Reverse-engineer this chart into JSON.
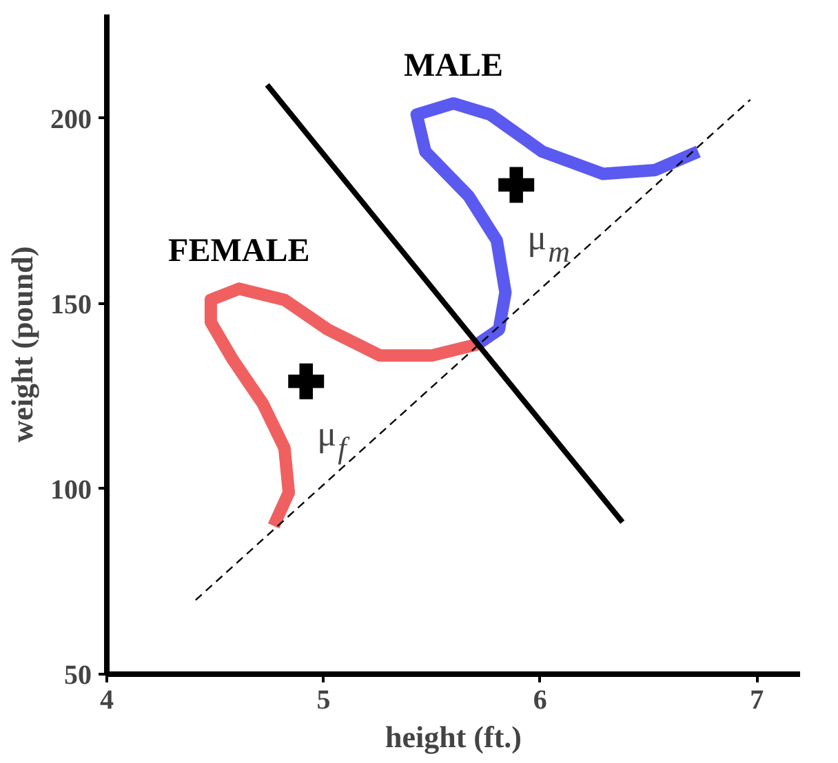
{
  "chart_data": {
    "type": "line",
    "xlabel": "height (ft.)",
    "ylabel": "weight (pound)",
    "xlim": [
      4,
      7.2
    ],
    "ylim": [
      50,
      228
    ],
    "xticks": [
      4,
      5,
      6,
      7
    ],
    "yticks": [
      50,
      100,
      150,
      200
    ],
    "grid": false,
    "series": [
      {
        "name": "FEMALE",
        "color": "#f06060",
        "x": [
          4.77,
          4.84,
          4.82,
          4.72,
          4.58,
          4.48,
          4.48,
          4.61,
          4.82,
          5.02,
          5.26,
          5.5,
          5.71
        ],
        "values": [
          90,
          99,
          111,
          123,
          135,
          145,
          151,
          154,
          151,
          143,
          136,
          136,
          139
        ]
      },
      {
        "name": "MALE",
        "color": "#5a5af0",
        "x": [
          5.71,
          5.81,
          5.84,
          5.8,
          5.67,
          5.47,
          5.43,
          5.6,
          5.77,
          6.01,
          6.29,
          6.53,
          6.73
        ],
        "values": [
          139,
          143,
          153,
          167,
          179,
          191,
          201,
          204,
          201,
          191,
          185,
          186,
          191
        ]
      },
      {
        "color": "#000000",
        "x": [
          4.74,
          6.38
        ],
        "values": [
          209,
          91
        ]
      },
      {
        "color": "#000000",
        "line_style": "dashed",
        "x": [
          4.41,
          6.97
        ],
        "values": [
          70,
          205
        ]
      },
      {
        "type": "scatter",
        "marker": "cross",
        "color": "#000000",
        "x": [
          4.92,
          5.89
        ],
        "values": [
          129,
          182
        ]
      }
    ],
    "annotations": [
      "μ$_{f}$",
      "μ$_{m}$"
    ]
  }
}
